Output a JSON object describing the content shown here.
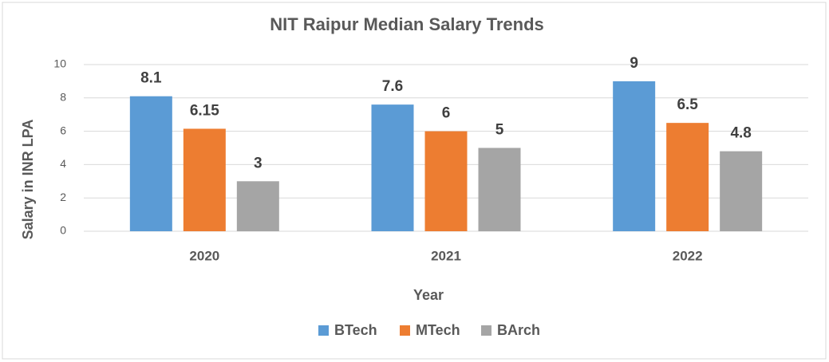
{
  "chart_data": {
    "type": "bar",
    "title": "NIT Raipur Median Salary Trends",
    "x_label": "Year",
    "y_label": "Salary in INR LPA",
    "categories": [
      "2020",
      "2021",
      "2022"
    ],
    "series": [
      {
        "name": "BTech",
        "color": "#5b9bd5",
        "values": [
          8.1,
          7.6,
          9
        ]
      },
      {
        "name": "MTech",
        "color": "#ed7d31",
        "values": [
          6.15,
          6,
          6.5
        ]
      },
      {
        "name": "BArch",
        "color": "#a5a5a5",
        "values": [
          3,
          5,
          4.8
        ]
      }
    ],
    "ylim": [
      0,
      10
    ],
    "yticks": [
      0,
      2,
      4,
      6,
      8,
      10
    ],
    "grid": true,
    "legend": "bottom"
  }
}
